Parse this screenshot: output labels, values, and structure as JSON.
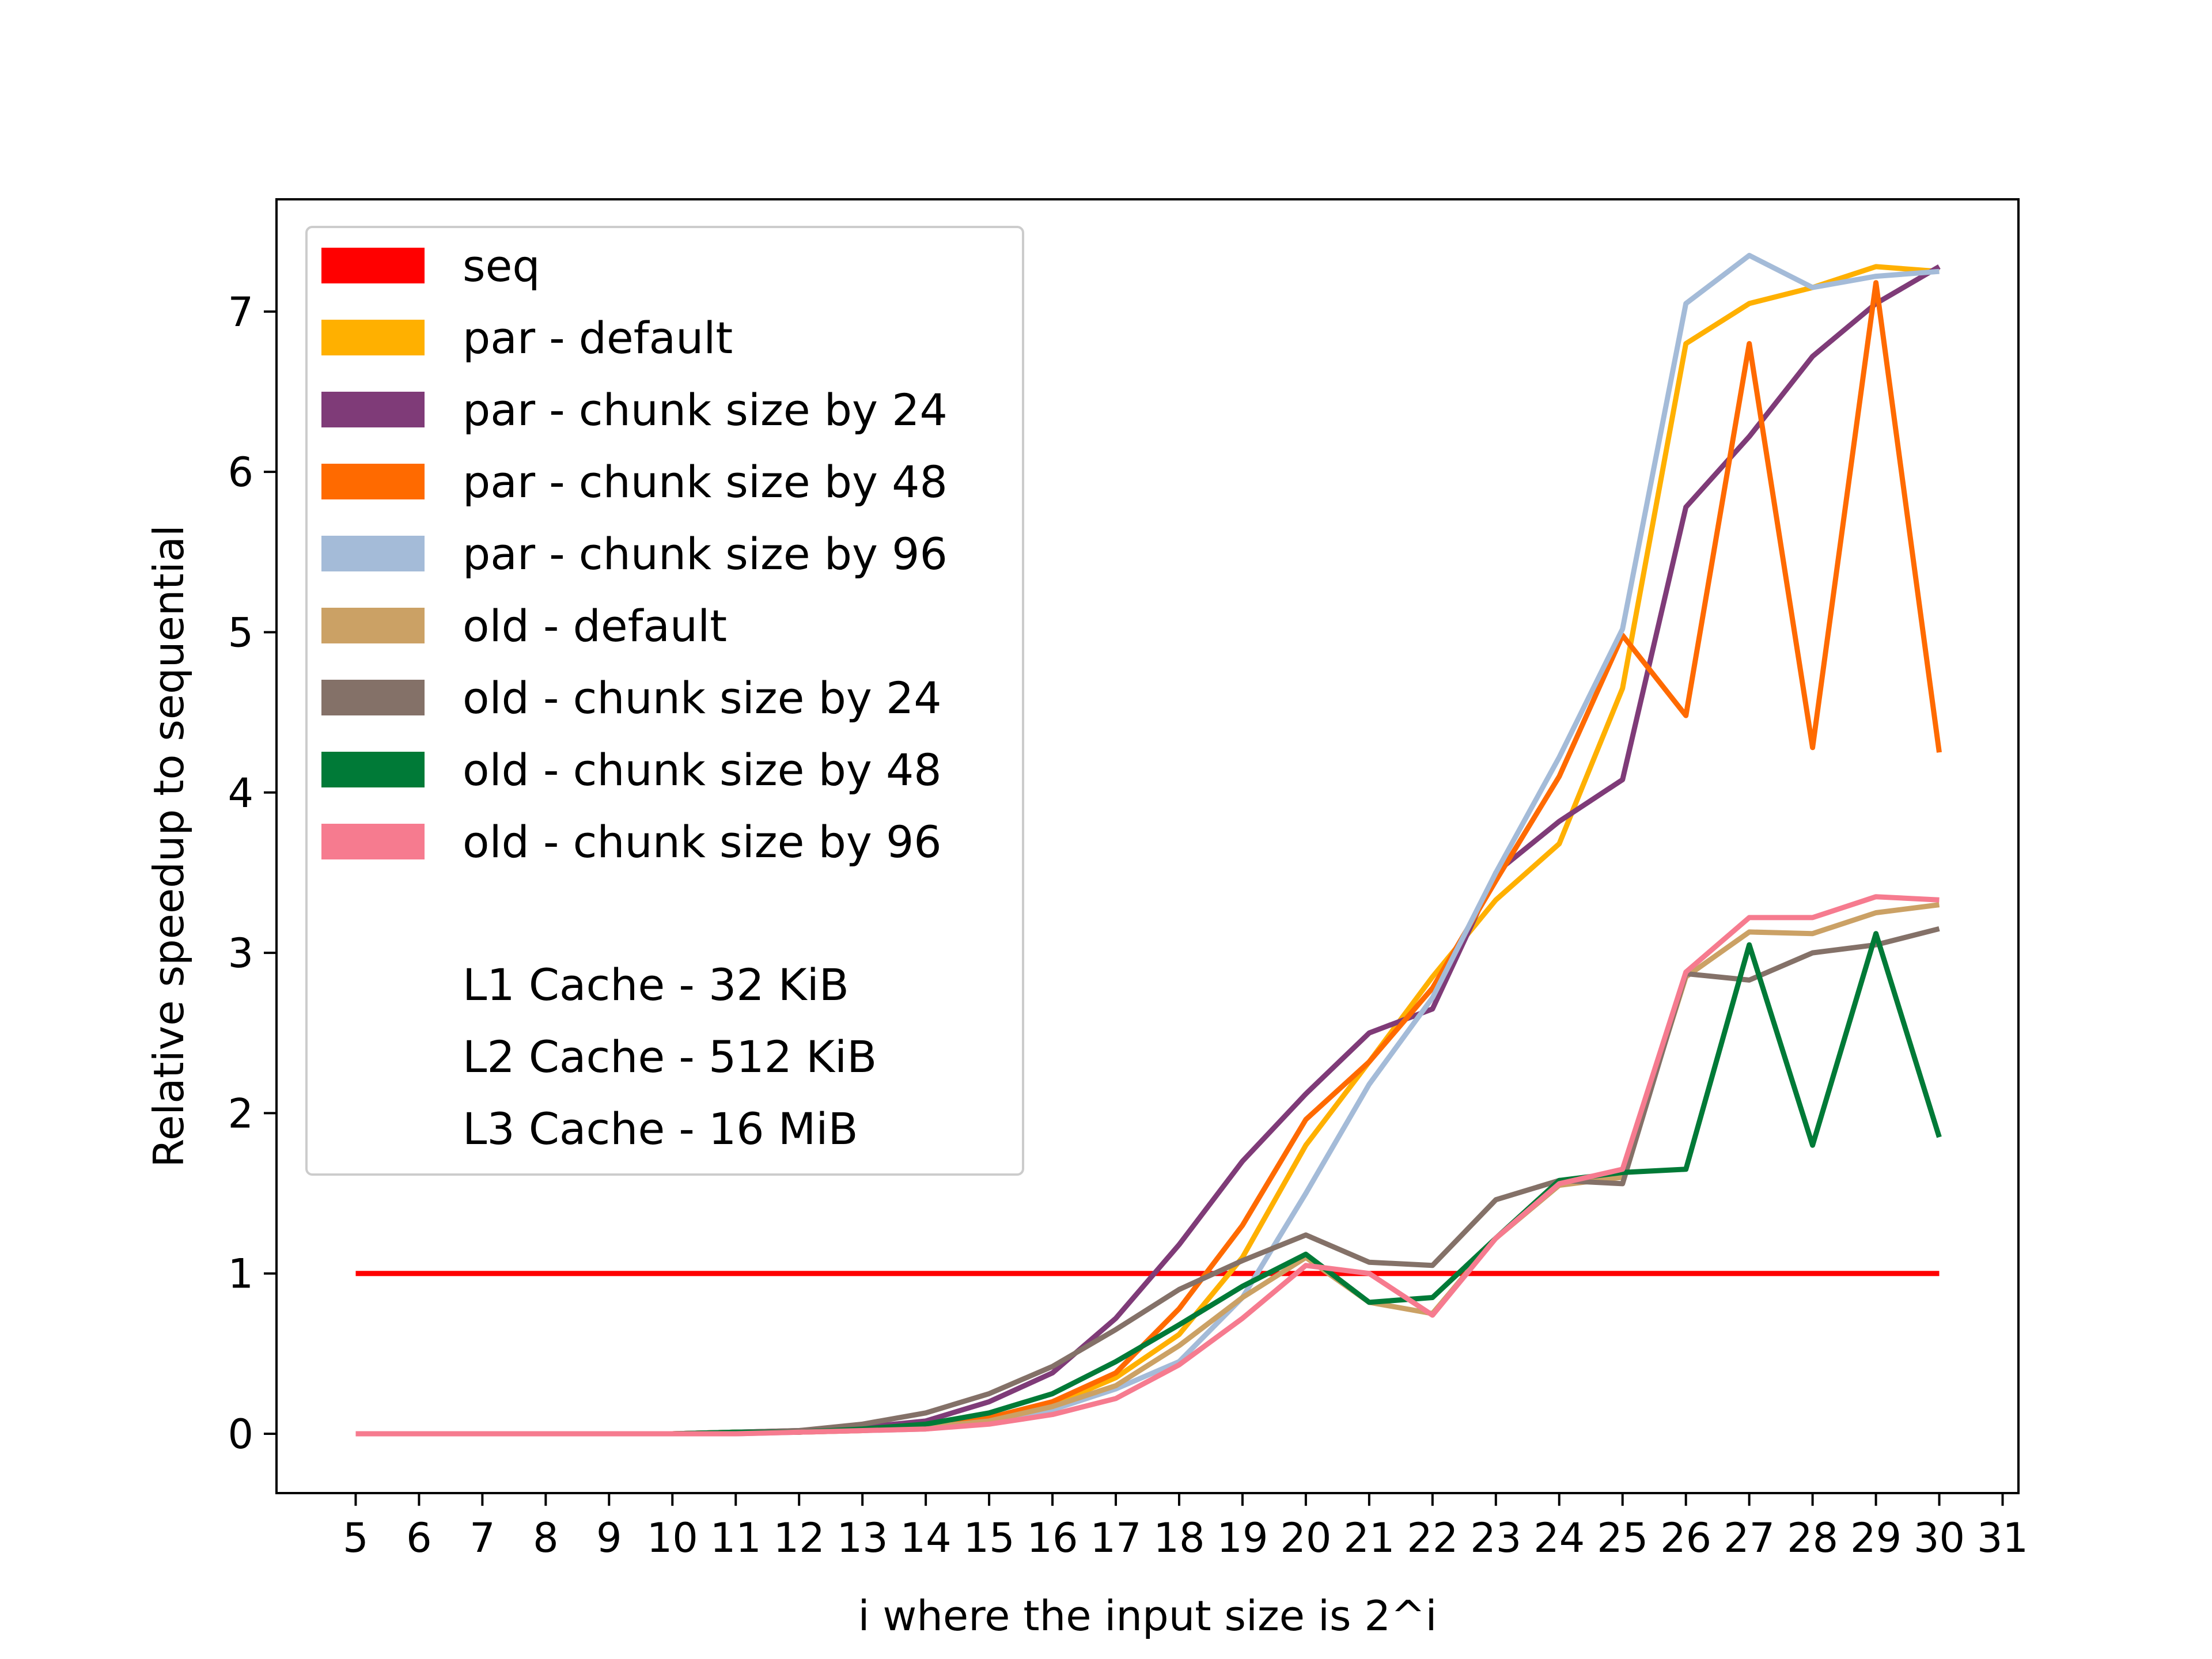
{
  "chart_data": {
    "type": "line",
    "xlabel": "i where the input size is 2^i",
    "ylabel": "Relative speedup to sequential",
    "x_ticks": [
      "5",
      "6",
      "7",
      "8",
      "9",
      "10",
      "11",
      "12",
      "13",
      "14",
      "15",
      "16",
      "17",
      "18",
      "19",
      "20",
      "21",
      "22",
      "23",
      "24",
      "25",
      "26",
      "27",
      "28",
      "29",
      "30",
      "31"
    ],
    "y_ticks": [
      "0",
      "1",
      "2",
      "3",
      "4",
      "5",
      "6",
      "7"
    ],
    "xlim": [
      3.75,
      31.25
    ],
    "ylim": [
      -0.37,
      7.7
    ],
    "grid": false,
    "legend_position": "upper-left",
    "x": [
      5,
      6,
      7,
      8,
      9,
      10,
      11,
      12,
      13,
      14,
      15,
      16,
      17,
      18,
      19,
      20,
      21,
      22,
      23,
      24,
      25,
      26,
      27,
      28,
      29,
      30
    ],
    "series": [
      {
        "name": "seq",
        "color": "#ff0000",
        "values": [
          1,
          1,
          1,
          1,
          1,
          1,
          1,
          1,
          1,
          1,
          1,
          1,
          1,
          1,
          1,
          1,
          1,
          1,
          1,
          1,
          1,
          1,
          1,
          1,
          1,
          1
        ]
      },
      {
        "name": "par - default",
        "color": "#ffb000",
        "values": [
          0.0,
          0.0,
          0.0,
          0.0,
          0.0,
          0.0,
          0.01,
          0.01,
          0.02,
          0.04,
          0.08,
          0.18,
          0.35,
          0.62,
          1.1,
          1.8,
          2.32,
          2.85,
          3.33,
          3.68,
          4.65,
          6.8,
          7.05,
          7.15,
          7.28,
          7.25
        ]
      },
      {
        "name": "par - chunk size by 24",
        "color": "#7f3b78",
        "values": [
          0.0,
          0.0,
          0.0,
          0.0,
          0.0,
          0.0,
          0.01,
          0.02,
          0.04,
          0.08,
          0.2,
          0.38,
          0.72,
          1.18,
          1.7,
          2.12,
          2.5,
          2.65,
          3.5,
          3.82,
          4.08,
          5.78,
          6.22,
          6.72,
          7.05,
          7.28
        ]
      },
      {
        "name": "par - chunk size by 48",
        "color": "#ff6a00",
        "values": [
          0.0,
          0.0,
          0.0,
          0.0,
          0.0,
          0.0,
          0.01,
          0.01,
          0.03,
          0.05,
          0.1,
          0.2,
          0.38,
          0.78,
          1.3,
          1.96,
          2.32,
          2.78,
          3.45,
          4.1,
          4.98,
          4.48,
          6.8,
          4.28,
          7.18,
          4.25
        ]
      },
      {
        "name": "par - chunk size by 96",
        "color": "#a4bbd8",
        "values": [
          0.0,
          0.0,
          0.0,
          0.0,
          0.0,
          0.0,
          0.0,
          0.01,
          0.02,
          0.03,
          0.07,
          0.15,
          0.28,
          0.45,
          0.85,
          1.5,
          2.18,
          2.72,
          3.5,
          4.22,
          5.02,
          7.05,
          7.35,
          7.15,
          7.22,
          7.25
        ]
      },
      {
        "name": "old - default",
        "color": "#cba165",
        "values": [
          0.0,
          0.0,
          0.0,
          0.0,
          0.0,
          0.0,
          0.01,
          0.01,
          0.02,
          0.04,
          0.08,
          0.17,
          0.3,
          0.55,
          0.85,
          1.1,
          0.82,
          0.75,
          1.22,
          1.55,
          1.6,
          2.85,
          3.13,
          3.12,
          3.25,
          3.3
        ]
      },
      {
        "name": "old - chunk size by 24",
        "color": "#847168",
        "values": [
          0.0,
          0.0,
          0.0,
          0.0,
          0.0,
          0.0,
          0.01,
          0.02,
          0.06,
          0.13,
          0.25,
          0.42,
          0.65,
          0.9,
          1.08,
          1.24,
          1.07,
          1.05,
          1.46,
          1.58,
          1.56,
          2.87,
          2.83,
          3.0,
          3.05,
          3.15
        ]
      },
      {
        "name": "old - chunk size by 48",
        "color": "#007a37",
        "values": [
          0.0,
          0.0,
          0.0,
          0.0,
          0.0,
          0.0,
          0.01,
          0.01,
          0.03,
          0.06,
          0.13,
          0.25,
          0.45,
          0.68,
          0.92,
          1.12,
          0.82,
          0.85,
          1.22,
          1.58,
          1.63,
          1.65,
          3.05,
          1.8,
          3.12,
          1.85
        ]
      },
      {
        "name": "old - chunk size by 96",
        "color": "#f67b8f",
        "values": [
          0.0,
          0.0,
          0.0,
          0.0,
          0.0,
          0.0,
          0.0,
          0.01,
          0.02,
          0.03,
          0.06,
          0.12,
          0.22,
          0.43,
          0.72,
          1.05,
          1.0,
          0.74,
          1.22,
          1.56,
          1.65,
          2.88,
          3.22,
          3.22,
          3.35,
          3.33
        ]
      }
    ],
    "annotations": [
      "L1 Cache - 32 KiB",
      "L2 Cache - 512 KiB",
      "L3 Cache - 16 MiB"
    ]
  }
}
